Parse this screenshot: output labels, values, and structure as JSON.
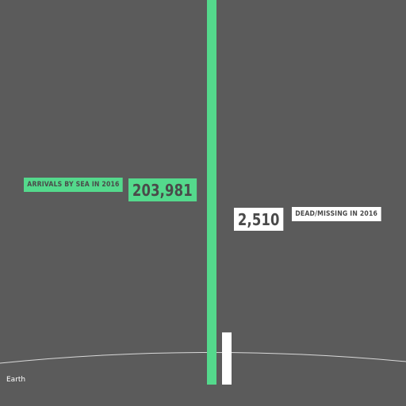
{
  "colors": {
    "background": "#5b5b5b",
    "arrivals": "#54d98c",
    "dead": "#ffffff",
    "label_text": "#4a4a4a",
    "earth_line": "#d9d9d9"
  },
  "earth_label": "Earth",
  "chart_data": {
    "type": "bar",
    "title": "",
    "xlabel": "",
    "ylabel": "",
    "scale": "log",
    "grid": false,
    "legend": "none",
    "categories": [
      "ARRIVALS BY SEA IN 2016",
      "DEAD/MISSING IN 2016"
    ],
    "values": [
      203981,
      2510
    ],
    "series": [
      {
        "values": [
          203981,
          2510
        ],
        "value_labels": [
          "203,981",
          "2,510"
        ],
        "colors": [
          "#54d98c",
          "#ffffff"
        ]
      }
    ]
  }
}
